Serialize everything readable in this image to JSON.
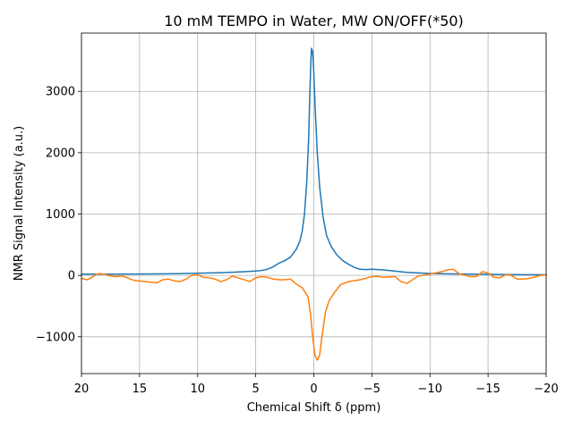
{
  "chart_data": {
    "type": "line",
    "title": "10 mM TEMPO in Water, MW ON/OFF(*50)",
    "xlabel": "Chemical Shift δ (ppm)",
    "ylabel": "NMR Signal Intensity (a.u.)",
    "xlim": [
      20,
      -20
    ],
    "ylim": [
      -1600,
      3950
    ],
    "x_axis_inverted": true,
    "grid": true,
    "legend": "none",
    "xticks": [
      20,
      15,
      10,
      5,
      0,
      -5,
      -10,
      -15,
      -20
    ],
    "xtick_labels": [
      "20",
      "15",
      "10",
      "5",
      "0",
      "−5",
      "−10",
      "−15",
      "−20"
    ],
    "yticks": [
      -1000,
      0,
      1000,
      2000,
      3000
    ],
    "ytick_labels": [
      "−1000",
      "0",
      "1000",
      "2000",
      "3000"
    ],
    "series": [
      {
        "color": "#1f77b4",
        "points": [
          [
            20,
            20
          ],
          [
            18,
            20
          ],
          [
            16,
            22
          ],
          [
            14,
            25
          ],
          [
            12,
            28
          ],
          [
            10,
            35
          ],
          [
            9,
            40
          ],
          [
            8,
            45
          ],
          [
            7,
            52
          ],
          [
            6,
            60
          ],
          [
            5,
            72
          ],
          [
            4.5,
            80
          ],
          [
            4,
            100
          ],
          [
            3.5,
            140
          ],
          [
            3.2,
            175
          ],
          [
            3,
            200
          ],
          [
            2.5,
            240
          ],
          [
            2,
            300
          ],
          [
            1.5,
            430
          ],
          [
            1.2,
            560
          ],
          [
            1,
            720
          ],
          [
            0.8,
            1000
          ],
          [
            0.6,
            1550
          ],
          [
            0.45,
            2200
          ],
          [
            0.35,
            2900
          ],
          [
            0.25,
            3500
          ],
          [
            0.2,
            3700
          ],
          [
            0.1,
            3650
          ],
          [
            0,
            3300
          ],
          [
            -0.1,
            2800
          ],
          [
            -0.3,
            2000
          ],
          [
            -0.5,
            1450
          ],
          [
            -0.8,
            950
          ],
          [
            -1.1,
            650
          ],
          [
            -1.5,
            470
          ],
          [
            -2,
            330
          ],
          [
            -2.5,
            240
          ],
          [
            -3,
            180
          ],
          [
            -3.5,
            130
          ],
          [
            -4,
            100
          ],
          [
            -4.5,
            95
          ],
          [
            -5,
            100
          ],
          [
            -6,
            90
          ],
          [
            -7,
            70
          ],
          [
            -8,
            50
          ],
          [
            -9,
            40
          ],
          [
            -10,
            32
          ],
          [
            -11,
            28
          ],
          [
            -12,
            25
          ],
          [
            -14,
            20
          ],
          [
            -16,
            15
          ],
          [
            -18,
            12
          ],
          [
            -20,
            12
          ]
        ]
      },
      {
        "color": "#ff7f0e",
        "points": [
          [
            20,
            -50
          ],
          [
            19.5,
            -70
          ],
          [
            19,
            -20
          ],
          [
            18.8,
            10
          ],
          [
            18.5,
            30
          ],
          [
            18,
            20
          ],
          [
            17.5,
            -10
          ],
          [
            17,
            -20
          ],
          [
            16.5,
            -10
          ],
          [
            16,
            -40
          ],
          [
            15.5,
            -80
          ],
          [
            15,
            -90
          ],
          [
            14.5,
            -100
          ],
          [
            14,
            -110
          ],
          [
            13.5,
            -120
          ],
          [
            13,
            -70
          ],
          [
            12.5,
            -60
          ],
          [
            12,
            -90
          ],
          [
            11.5,
            -100
          ],
          [
            11,
            -60
          ],
          [
            10.5,
            0
          ],
          [
            10,
            10
          ],
          [
            9.5,
            -30
          ],
          [
            9,
            -40
          ],
          [
            8.5,
            -60
          ],
          [
            8,
            -100
          ],
          [
            7.5,
            -70
          ],
          [
            7,
            -10
          ],
          [
            6.5,
            -40
          ],
          [
            6,
            -70
          ],
          [
            5.5,
            -100
          ],
          [
            5,
            -40
          ],
          [
            4.5,
            -20
          ],
          [
            4,
            -30
          ],
          [
            3.5,
            -60
          ],
          [
            3,
            -70
          ],
          [
            2.5,
            -70
          ],
          [
            2,
            -60
          ],
          [
            1.5,
            -140
          ],
          [
            1,
            -200
          ],
          [
            0.5,
            -350
          ],
          [
            0.3,
            -600
          ],
          [
            0.1,
            -1000
          ],
          [
            -0.1,
            -1300
          ],
          [
            -0.3,
            -1380
          ],
          [
            -0.5,
            -1300
          ],
          [
            -0.7,
            -1000
          ],
          [
            -1,
            -600
          ],
          [
            -1.3,
            -420
          ],
          [
            -1.7,
            -300
          ],
          [
            -2.3,
            -150
          ],
          [
            -3,
            -100
          ],
          [
            -4,
            -70
          ],
          [
            -5,
            -20
          ],
          [
            -5.5,
            -15
          ],
          [
            -6,
            -30
          ],
          [
            -7,
            -20
          ],
          [
            -7.5,
            -100
          ],
          [
            -8,
            -130
          ],
          [
            -8.5,
            -70
          ],
          [
            -9,
            -10
          ],
          [
            -10,
            20
          ],
          [
            -11,
            60
          ],
          [
            -11.5,
            90
          ],
          [
            -12,
            100
          ],
          [
            -12.5,
            30
          ],
          [
            -13.5,
            -20
          ],
          [
            -14,
            -20
          ],
          [
            -14.5,
            60
          ],
          [
            -15,
            40
          ],
          [
            -15.5,
            -30
          ],
          [
            -16,
            -40
          ],
          [
            -16.5,
            10
          ],
          [
            -17,
            0
          ],
          [
            -17.5,
            -60
          ],
          [
            -18,
            -60
          ],
          [
            -18.5,
            -50
          ],
          [
            -19.5,
            0
          ],
          [
            -20,
            10
          ]
        ]
      }
    ]
  }
}
